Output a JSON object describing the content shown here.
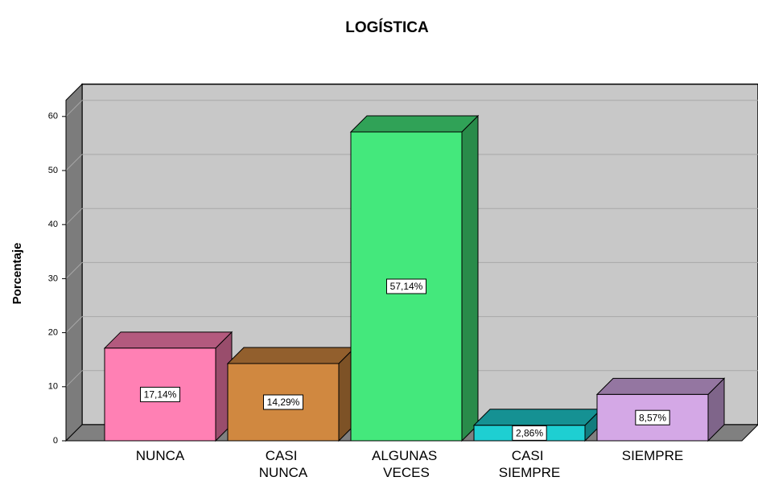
{
  "chart_data": {
    "type": "bar3d",
    "title": "LOGÍSTICA",
    "y_label": "Porcentaje",
    "categories": [
      "NUNCA",
      "CASI NUNCA",
      "ALGUNAS VECES",
      "CASI SIEMPRE",
      "SIEMPRE"
    ],
    "values": [
      17.14,
      14.29,
      57.14,
      2.86,
      8.57
    ],
    "value_labels": [
      "17,14%",
      "14,29%",
      "57,14%",
      "2,86%",
      "8,57%"
    ],
    "colors": [
      "#ff80b4",
      "#d08840",
      "#44e87c",
      "#1ecfd2",
      "#d4a8e6"
    ],
    "ylim": [
      0,
      63
    ],
    "yticks": [
      0,
      10,
      20,
      30,
      40,
      50,
      60
    ],
    "grid": true
  }
}
